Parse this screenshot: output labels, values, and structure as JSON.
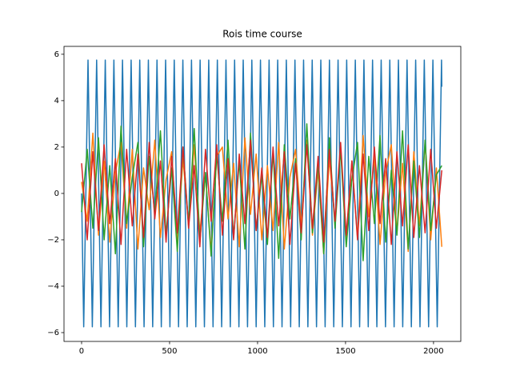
{
  "chart_data": {
    "type": "line",
    "title": "Rois time course",
    "xlim": [
      -100,
      2155
    ],
    "ylim": [
      -6.38,
      6.34
    ],
    "xticks": [
      0,
      500,
      1000,
      1500,
      2000
    ],
    "yticks": [
      {
        "value": -6,
        "label": "−6"
      },
      {
        "value": -4,
        "label": "−4"
      },
      {
        "value": -2,
        "label": "−2"
      },
      0,
      2,
      4,
      6
    ],
    "series": [
      {
        "color": "#1f77b4",
        "x": [
          0,
          12,
          36.5,
          61,
          85.5,
          110,
          134.5,
          159,
          183.5,
          208,
          232.5,
          257,
          281.5,
          306,
          330.5,
          355,
          379.5,
          404,
          428.5,
          453,
          477.5,
          502,
          526.5,
          551,
          575.5,
          600,
          624.5,
          649,
          673.5,
          698,
          722.5,
          747,
          771.5,
          796,
          820.5,
          845,
          869.5,
          894,
          918.5,
          943,
          967.5,
          992,
          1016.5,
          1041,
          1065.5,
          1090,
          1114.5,
          1139,
          1163.5,
          1188,
          1212.5,
          1237,
          1261.5,
          1286,
          1310.5,
          1335,
          1359.5,
          1384,
          1408.5,
          1433,
          1457.5,
          1482,
          1506.5,
          1531,
          1555.5,
          1580,
          1604.5,
          1629,
          1653.5,
          1678,
          1702.5,
          1727,
          1751.5,
          1776,
          1800.5,
          1825,
          1849.5,
          1874,
          1898.5,
          1923,
          1947.5,
          1972,
          1996.5,
          2021,
          2045.5,
          2047
        ],
        "values": [
          0,
          -5.75,
          5.75,
          -5.75,
          5.75,
          -5.75,
          5.75,
          -5.75,
          5.75,
          -5.75,
          5.75,
          -5.75,
          5.75,
          -5.75,
          5.75,
          -5.75,
          5.75,
          -5.75,
          5.75,
          -5.75,
          5.75,
          -5.75,
          5.75,
          -5.75,
          5.75,
          -5.75,
          5.75,
          -5.75,
          5.75,
          -5.75,
          5.75,
          -5.75,
          5.75,
          -5.75,
          5.75,
          -5.75,
          5.75,
          -5.75,
          5.75,
          -5.75,
          5.75,
          -5.75,
          5.75,
          -5.75,
          5.75,
          -5.75,
          5.75,
          -5.75,
          5.75,
          -5.75,
          5.75,
          -5.75,
          5.75,
          -5.75,
          5.75,
          -5.75,
          5.75,
          -5.75,
          5.75,
          -5.75,
          5.75,
          -5.75,
          5.75,
          -5.75,
          5.75,
          -5.75,
          5.75,
          -5.75,
          5.75,
          -5.75,
          5.75,
          -5.75,
          5.75,
          -5.75,
          5.75,
          -5.75,
          5.75,
          -5.75,
          5.75,
          -5.75,
          5.75,
          -5.75,
          5.75,
          -5.75,
          5.75,
          4.6
        ]
      },
      {
        "color": "#ff7f0e",
        "x": [
          0,
          32,
          64,
          96,
          128,
          160,
          192,
          224,
          256,
          288,
          320,
          352,
          384,
          416,
          448,
          480,
          512,
          544,
          576,
          608,
          640,
          672,
          704,
          736,
          768,
          800,
          832,
          864,
          896,
          928,
          960,
          992,
          1024,
          1056,
          1088,
          1120,
          1152,
          1184,
          1216,
          1248,
          1280,
          1312,
          1344,
          1376,
          1408,
          1440,
          1472,
          1504,
          1536,
          1568,
          1600,
          1632,
          1664,
          1696,
          1728,
          1760,
          1792,
          1824,
          1856,
          1888,
          1920,
          1952,
          1984,
          2016,
          2047
        ],
        "values": [
          0.5,
          -1.2,
          2.6,
          -1.8,
          1.4,
          -2.1,
          0.9,
          2.2,
          -1.5,
          1.9,
          -2.4,
          1.1,
          -0.7,
          2.3,
          -1.9,
          0.6,
          1.8,
          -2.2,
          1.5,
          -1.3,
          2.1,
          -1.7,
          0.8,
          -2.5,
          1.6,
          2.0,
          -1.1,
          1.3,
          -2.3,
          2.4,
          -0.9,
          1.7,
          -2.0,
          1.2,
          -1.6,
          2.2,
          -2.4,
          0.7,
          1.9,
          -1.4,
          2.3,
          -1.8,
          1.0,
          -2.6,
          1.5,
          -1.2,
          2.0,
          -2.1,
          1.4,
          -1.9,
          2.5,
          -1.0,
          1.6,
          -2.2,
          0.9,
          2.1,
          -1.7,
          1.3,
          -2.5,
          1.8,
          -1.4,
          2.2,
          -2.0,
          1.1,
          -2.3
        ]
      },
      {
        "color": "#2ca02c",
        "x": [
          0,
          32,
          64,
          96,
          128,
          160,
          192,
          224,
          256,
          288,
          320,
          352,
          384,
          416,
          448,
          480,
          512,
          544,
          576,
          608,
          640,
          672,
          704,
          736,
          768,
          800,
          832,
          864,
          896,
          928,
          960,
          992,
          1024,
          1056,
          1088,
          1120,
          1152,
          1184,
          1216,
          1248,
          1280,
          1312,
          1344,
          1376,
          1408,
          1440,
          1472,
          1504,
          1536,
          1568,
          1600,
          1632,
          1664,
          1696,
          1728,
          1760,
          1792,
          1824,
          1856,
          1888,
          1920,
          1952,
          1984,
          2016,
          2047
        ],
        "values": [
          -0.8,
          1.9,
          -1.5,
          2.4,
          -2.0,
          1.2,
          -2.6,
          2.9,
          -1.3,
          0.7,
          2.2,
          -2.3,
          1.6,
          -0.9,
          2.7,
          -1.8,
          1.1,
          -2.5,
          2.0,
          -1.4,
          2.8,
          -2.1,
          0.9,
          -2.7,
          1.7,
          -1.2,
          2.3,
          -1.9,
          1.4,
          -2.4,
          2.6,
          -1.6,
          0.8,
          -2.2,
          1.8,
          -2.8,
          2.1,
          -1.1,
          1.5,
          -2.0,
          3.0,
          -1.7,
          1.3,
          -2.6,
          2.4,
          -1.5,
          1.9,
          -2.3,
          0.6,
          2.2,
          -2.9,
          1.6,
          -1.3,
          2.5,
          -2.1,
          1.0,
          -1.8,
          2.7,
          -2.4,
          1.4,
          -1.9,
          2.3,
          -1.6,
          0.8,
          1.2
        ]
      },
      {
        "color": "#d62728",
        "x": [
          0,
          32,
          64,
          96,
          128,
          160,
          192,
          224,
          256,
          288,
          320,
          352,
          384,
          416,
          448,
          480,
          512,
          544,
          576,
          608,
          640,
          672,
          704,
          736,
          768,
          800,
          832,
          864,
          896,
          928,
          960,
          992,
          1024,
          1056,
          1088,
          1120,
          1152,
          1184,
          1216,
          1248,
          1280,
          1312,
          1344,
          1376,
          1408,
          1440,
          1472,
          1504,
          1536,
          1568,
          1600,
          1632,
          1664,
          1696,
          1728,
          1760,
          1792,
          1824,
          1856,
          1888,
          1920,
          1952,
          1984,
          2016,
          2047
        ],
        "values": [
          1.3,
          -2.0,
          1.8,
          -1.6,
          2.1,
          -1.3,
          1.5,
          -2.2,
          1.9,
          -1.4,
          1.7,
          -1.9,
          2.2,
          -1.1,
          1.4,
          -2.1,
          1.6,
          -1.7,
          2.0,
          -1.5,
          1.2,
          -2.3,
          1.9,
          -1.2,
          2.1,
          -1.8,
          1.5,
          -2.0,
          1.7,
          -1.3,
          2.3,
          -1.6,
          1.1,
          -1.9,
          2.0,
          -1.4,
          1.8,
          -2.2,
          1.3,
          -1.7,
          2.1,
          -1.5,
          1.6,
          -2.1,
          1.9,
          -1.2,
          2.2,
          -1.8,
          1.4,
          -2.0,
          1.7,
          -1.6,
          2.0,
          -1.3,
          1.5,
          -2.2,
          1.8,
          -1.4,
          2.1,
          -1.9,
          1.2,
          -1.7,
          1.9,
          -1.5,
          1.0
        ]
      }
    ]
  }
}
